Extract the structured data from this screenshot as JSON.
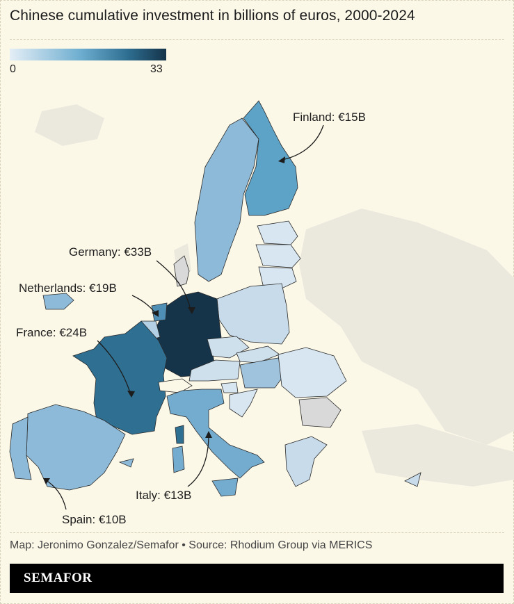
{
  "title": "Chinese cumulative investment in billions of euros, 2000-2024",
  "legend": {
    "min_label": "0",
    "max_label": "33",
    "color_low": "#dfeaf3",
    "color_high": "#15344a"
  },
  "map_data": {
    "type": "choropleth",
    "unit": "billions of euros",
    "regions": [
      {
        "name": "Germany",
        "value": 33
      },
      {
        "name": "France",
        "value": 24
      },
      {
        "name": "Netherlands",
        "value": 19
      },
      {
        "name": "Finland",
        "value": 15
      },
      {
        "name": "Italy",
        "value": 13
      },
      {
        "name": "Spain",
        "value": 10
      }
    ],
    "no_data_color": "#d9d9d9",
    "background_land_color": "#ece9df"
  },
  "callouts": {
    "finland": "Finland: €15B",
    "germany": "Germany: €33B",
    "netherlands": "Netherlands: €19B",
    "france": "France: €24B",
    "italy": "Italy: €13B",
    "spain": "Spain: €10B"
  },
  "footer": {
    "credit": "Map: Jeronimo Gonzalez/Semafor • Source: Rhodium Group via MERICS",
    "brand": "SEMAFOR"
  }
}
